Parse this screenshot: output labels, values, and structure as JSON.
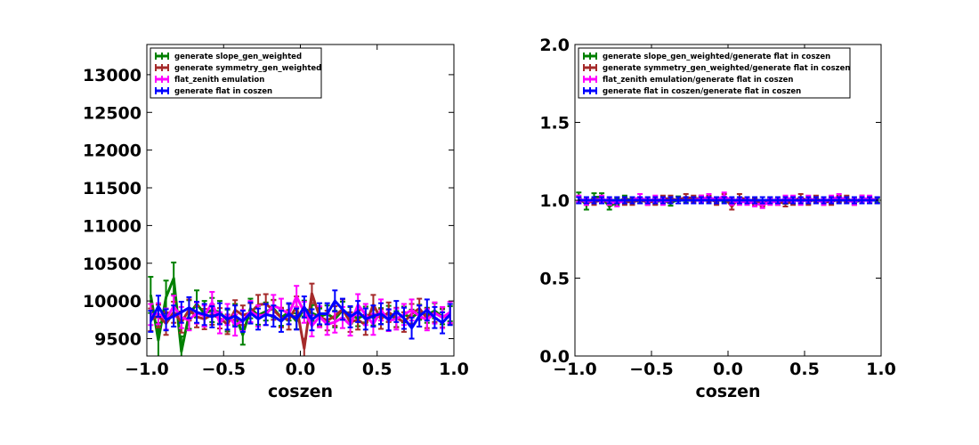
{
  "chart_data": [
    {
      "type": "line",
      "title": "",
      "xlabel": "coszen",
      "ylabel": "",
      "xlim": [
        -1.0,
        1.0
      ],
      "ylim": [
        9270,
        13400
      ],
      "xticks": [
        -1.0,
        -0.5,
        0.0,
        0.5,
        1.0
      ],
      "xtick_labels": [
        "−1.0",
        "−0.5",
        "0.0",
        "0.5",
        "1.0"
      ],
      "yticks": [
        9500,
        10000,
        10500,
        11000,
        11500,
        12000,
        12500,
        13000
      ],
      "ytick_labels": [
        "9500",
        "10000",
        "10500",
        "11000",
        "11500",
        "12000",
        "12500",
        "13000"
      ],
      "legend_position": "top-left",
      "grid": false,
      "error_bars": true,
      "x": [
        -0.975,
        -0.925,
        -0.875,
        -0.825,
        -0.775,
        -0.725,
        -0.675,
        -0.625,
        -0.575,
        -0.525,
        -0.475,
        -0.425,
        -0.375,
        -0.325,
        -0.275,
        -0.225,
        -0.175,
        -0.125,
        -0.075,
        -0.025,
        0.025,
        0.075,
        0.125,
        0.175,
        0.225,
        0.275,
        0.325,
        0.375,
        0.425,
        0.475,
        0.525,
        0.575,
        0.625,
        0.675,
        0.725,
        0.775,
        0.825,
        0.875,
        0.925,
        0.975
      ],
      "series": [
        {
          "name": "generate slope_gen_weighted",
          "color": "#008000",
          "values": [
            10080,
            9480,
            10050,
            10300,
            9330,
            9820,
            9960,
            9830,
            9880,
            9850,
            9740,
            9820,
            9550,
            9900,
            9810,
            9860,
            9900,
            9780,
            9850,
            9730,
            9900,
            9840,
            9790,
            9830,
            9760,
            9880,
            9810,
            9770,
            9820,
            9780,
            9800,
            9830,
            9760,
            9820,
            9780,
            9850,
            9810,
            9870,
            9790,
            9830
          ],
          "errors": [
            240,
            230,
            220,
            210,
            200,
            190,
            180,
            170,
            160,
            150,
            145,
            140,
            130,
            130,
            125,
            120,
            115,
            110,
            110,
            105,
            105,
            105,
            110,
            110,
            110,
            110,
            110,
            105,
            105,
            105,
            105,
            105,
            105,
            105,
            105,
            100,
            100,
            100,
            100,
            100
          ]
        },
        {
          "name": "generate symmetry_gen_weighted",
          "color": "#a52a2a",
          "values": [
            9750,
            9800,
            9700,
            9850,
            9720,
            9880,
            9790,
            9760,
            9820,
            9770,
            9690,
            9880,
            9810,
            9840,
            9950,
            9960,
            9880,
            9780,
            9750,
            9930,
            9370,
            10100,
            9790,
            9740,
            9800,
            9890,
            9720,
            9750,
            9680,
            9950,
            9760,
            9850,
            9780,
            9720,
            9830,
            9900,
            9770,
            9850,
            9780,
            9830
          ],
          "errors": [
            150,
            150,
            150,
            140,
            140,
            140,
            140,
            135,
            135,
            135,
            130,
            130,
            130,
            130,
            130,
            130,
            130,
            130,
            130,
            130,
            130,
            130,
            130,
            130,
            130,
            130,
            130,
            130,
            130,
            130,
            130,
            130,
            130,
            130,
            130,
            130,
            130,
            130,
            130,
            130
          ]
        },
        {
          "name": "flat_zenith emulation",
          "color": "#ff00ff",
          "values": [
            9820,
            9830,
            9760,
            9930,
            9780,
            9750,
            9840,
            9800,
            9980,
            9710,
            9820,
            9680,
            9740,
            9860,
            9800,
            9820,
            9940,
            9890,
            9830,
            10060,
            9850,
            9670,
            9790,
            9690,
            9720,
            9780,
            9680,
            9950,
            9820,
            9690,
            9880,
            9740,
            9760,
            9820,
            9880,
            9800,
            9750,
            9840,
            9780,
            9850
          ],
          "errors": [
            140,
            140,
            140,
            140,
            140,
            140,
            140,
            140,
            140,
            140,
            140,
            140,
            140,
            140,
            140,
            140,
            140,
            140,
            140,
            140,
            140,
            140,
            140,
            140,
            140,
            140,
            140,
            140,
            140,
            140,
            140,
            140,
            140,
            140,
            140,
            140,
            140,
            140,
            140,
            140
          ]
        },
        {
          "name": "generate flat in coszen",
          "color": "#0000ff",
          "values": [
            9730,
            9930,
            9750,
            9800,
            9850,
            9910,
            9850,
            9820,
            9790,
            9830,
            9760,
            9800,
            9730,
            9840,
            9760,
            9820,
            9800,
            9730,
            9830,
            9760,
            9920,
            9750,
            9830,
            9830,
            10000,
            9890,
            9790,
            9860,
            9760,
            9800,
            9830,
            9750,
            9860,
            9770,
            9640,
            9800,
            9880,
            9780,
            9710,
            9820
          ],
          "errors": [
            140,
            140,
            140,
            140,
            140,
            140,
            140,
            140,
            140,
            140,
            140,
            140,
            140,
            140,
            140,
            140,
            140,
            140,
            140,
            140,
            140,
            140,
            140,
            140,
            140,
            140,
            140,
            140,
            140,
            140,
            140,
            140,
            140,
            140,
            140,
            140,
            140,
            140,
            140,
            140
          ]
        }
      ]
    },
    {
      "type": "line",
      "title": "",
      "xlabel": "coszen",
      "ylabel": "",
      "xlim": [
        -1.0,
        1.0
      ],
      "ylim": [
        0.0,
        2.0
      ],
      "xticks": [
        -1.0,
        -0.5,
        0.0,
        0.5,
        1.0
      ],
      "xtick_labels": [
        "−1.0",
        "−0.5",
        "0.0",
        "0.5",
        "1.0"
      ],
      "yticks": [
        0.0,
        0.5,
        1.0,
        1.5,
        2.0
      ],
      "ytick_labels": [
        "0.0",
        "0.5",
        "1.0",
        "1.5",
        "2.0"
      ],
      "legend_position": "top-left",
      "grid": false,
      "error_bars": true,
      "x": [
        -0.975,
        -0.925,
        -0.875,
        -0.825,
        -0.775,
        -0.725,
        -0.675,
        -0.625,
        -0.575,
        -0.525,
        -0.475,
        -0.425,
        -0.375,
        -0.325,
        -0.275,
        -0.225,
        -0.175,
        -0.125,
        -0.075,
        -0.025,
        0.025,
        0.075,
        0.125,
        0.175,
        0.225,
        0.275,
        0.325,
        0.375,
        0.425,
        0.475,
        0.525,
        0.575,
        0.625,
        0.675,
        0.725,
        0.775,
        0.825,
        0.875,
        0.925,
        0.975
      ],
      "series": [
        {
          "name": "generate slope_gen_weighted/generate flat in coszen",
          "color": "#008000",
          "values": [
            1.02,
            0.97,
            1.02,
            1.02,
            0.96,
            0.99,
            1.01,
            1.0,
            1.0,
            1.0,
            0.99,
            1.0,
            0.98,
            1.01,
            1.0,
            1.01,
            1.01,
            1.0,
            1.0,
            1.0,
            1.0,
            1.0,
            0.99,
            1.0,
            0.98,
            1.0,
            1.0,
            0.99,
            1.0,
            1.0,
            1.0,
            1.0,
            0.99,
            1.0,
            1.0,
            1.0,
            0.99,
            1.0,
            1.0,
            1.0
          ],
          "errors": [
            0.03,
            0.03,
            0.025,
            0.025,
            0.02,
            0.02,
            0.02,
            0.02,
            0.018,
            0.018,
            0.016,
            0.016,
            0.015,
            0.015,
            0.015,
            0.014,
            0.014,
            0.013,
            0.013,
            0.013,
            0.013,
            0.013,
            0.013,
            0.013,
            0.013,
            0.013,
            0.013,
            0.013,
            0.013,
            0.013,
            0.013,
            0.013,
            0.013,
            0.013,
            0.013,
            0.013,
            0.013,
            0.013,
            0.013,
            0.013
          ]
        },
        {
          "name": "generate symmetry_gen_weighted/generate flat in coszen",
          "color": "#a52a2a",
          "values": [
            1.0,
            0.99,
            0.99,
            1.0,
            0.99,
            1.0,
            0.99,
            0.99,
            1.0,
            0.99,
            0.99,
            1.01,
            1.01,
            1.0,
            1.02,
            1.01,
            1.01,
            1.01,
            0.99,
            1.02,
            0.96,
            1.02,
            1.0,
            0.99,
            0.98,
            1.0,
            0.99,
            0.98,
            0.99,
            1.02,
            0.99,
            1.01,
            0.99,
            0.99,
            1.01,
            1.01,
            0.99,
            1.01,
            1.0,
            1.0
          ],
          "errors": [
            0.02,
            0.02,
            0.02,
            0.02,
            0.02,
            0.02,
            0.02,
            0.02,
            0.02,
            0.02,
            0.02,
            0.02,
            0.02,
            0.02,
            0.02,
            0.02,
            0.02,
            0.02,
            0.02,
            0.02,
            0.02,
            0.02,
            0.02,
            0.02,
            0.02,
            0.02,
            0.02,
            0.02,
            0.02,
            0.02,
            0.02,
            0.02,
            0.02,
            0.02,
            0.02,
            0.02,
            0.02,
            0.02,
            0.02,
            0.02
          ]
        },
        {
          "name": "flat_zenith emulation/generate flat in coszen",
          "color": "#ff00ff",
          "values": [
            1.01,
            0.99,
            1.0,
            1.01,
            0.99,
            0.98,
            1.0,
            1.0,
            1.02,
            0.99,
            1.01,
            0.99,
            1.0,
            1.0,
            1.0,
            1.0,
            1.01,
            1.02,
            1.0,
            1.03,
            0.99,
            0.99,
            0.99,
            0.98,
            0.97,
            0.99,
            0.99,
            1.01,
            1.01,
            0.99,
            1.01,
            1.0,
            0.99,
            1.01,
            1.02,
            1.0,
            0.99,
            1.01,
            1.01,
            1.0
          ],
          "errors": [
            0.02,
            0.02,
            0.02,
            0.02,
            0.02,
            0.02,
            0.02,
            0.02,
            0.02,
            0.02,
            0.02,
            0.02,
            0.02,
            0.02,
            0.02,
            0.02,
            0.02,
            0.02,
            0.02,
            0.02,
            0.02,
            0.02,
            0.02,
            0.02,
            0.02,
            0.02,
            0.02,
            0.02,
            0.02,
            0.02,
            0.02,
            0.02,
            0.02,
            0.02,
            0.02,
            0.02,
            0.02,
            0.02,
            0.02,
            0.02
          ]
        },
        {
          "name": "generate flat in coszen/generate flat in coszen",
          "color": "#0000ff",
          "values": [
            1.0,
            1.0,
            1.0,
            1.0,
            1.0,
            1.0,
            1.0,
            1.0,
            1.0,
            1.0,
            1.0,
            1.0,
            1.0,
            1.0,
            1.0,
            1.0,
            1.0,
            1.0,
            1.0,
            1.0,
            1.0,
            1.0,
            1.0,
            1.0,
            1.0,
            1.0,
            1.0,
            1.0,
            1.0,
            1.0,
            1.0,
            1.0,
            1.0,
            1.0,
            1.0,
            1.0,
            1.0,
            1.0,
            1.0,
            1.0
          ],
          "errors": [
            0.02,
            0.02,
            0.02,
            0.02,
            0.02,
            0.02,
            0.02,
            0.02,
            0.02,
            0.02,
            0.02,
            0.02,
            0.02,
            0.02,
            0.02,
            0.02,
            0.02,
            0.02,
            0.02,
            0.02,
            0.02,
            0.02,
            0.02,
            0.02,
            0.02,
            0.02,
            0.02,
            0.02,
            0.02,
            0.02,
            0.02,
            0.02,
            0.02,
            0.02,
            0.02,
            0.02,
            0.02,
            0.02,
            0.02,
            0.02
          ]
        }
      ]
    }
  ]
}
